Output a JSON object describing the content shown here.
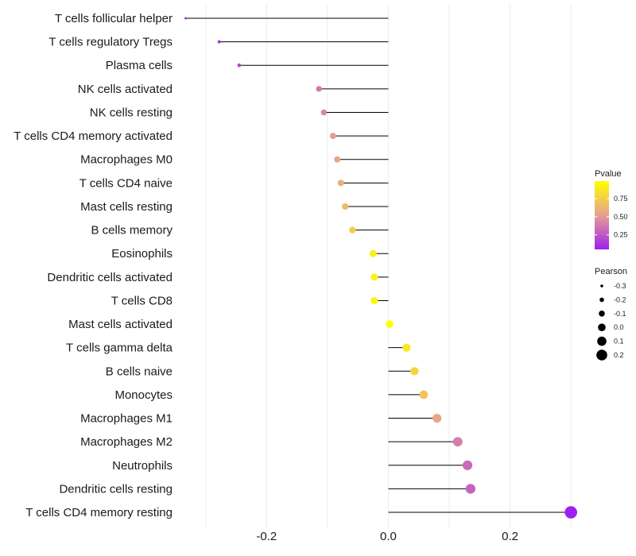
{
  "chart_data": {
    "type": "lollipop",
    "categories": [
      "T cells follicular helper",
      "T cells regulatory  Tregs",
      "Plasma cells",
      "NK cells activated",
      "NK cells resting",
      "T cells CD4 memory activated",
      "Macrophages M0",
      "T cells CD4 naive",
      "Mast cells resting",
      "B cells memory",
      "Eosinophils",
      "Dendritic cells activated",
      "T cells CD8",
      "Mast cells activated",
      "T cells gamma delta",
      "B cells naive",
      "Monocytes",
      "Macrophages M1",
      "Macrophages M2",
      "Neutrophils",
      "Dendritic cells resting",
      "T cells CD4 memory resting"
    ],
    "values": [
      -0.333,
      -0.278,
      -0.245,
      -0.114,
      -0.106,
      -0.091,
      -0.084,
      -0.078,
      -0.071,
      -0.059,
      -0.025,
      -0.023,
      -0.023,
      0.002,
      0.03,
      0.043,
      0.058,
      0.08,
      0.114,
      0.13,
      0.135,
      0.3
    ],
    "pvalues": [
      0.08,
      0.12,
      0.18,
      0.38,
      0.42,
      0.5,
      0.55,
      0.6,
      0.65,
      0.75,
      0.92,
      0.93,
      0.93,
      0.99,
      0.88,
      0.78,
      0.7,
      0.55,
      0.4,
      0.32,
      0.3,
      0.05
    ],
    "xlim": [
      -0.335,
      0.305
    ],
    "x_ticks": [
      -0.2,
      0.0,
      0.2
    ],
    "x_tick_labels": [
      "-0.2",
      "0.0",
      "0.2"
    ],
    "xlabel": "",
    "ylabel": "",
    "grid": true,
    "legend_color": {
      "title": "Pvalue",
      "ticks": [
        0.75,
        0.5,
        0.25
      ],
      "tick_labels": [
        "0.75",
        "0.50",
        "0.25"
      ],
      "range": [
        0.05,
        0.99
      ],
      "low_color": "#a020f0",
      "mid_color": "#e6a090",
      "high_color": "#ffff00"
    },
    "legend_size": {
      "title": "Pearson",
      "values": [
        -0.3,
        -0.2,
        -0.1,
        0.0,
        0.1,
        0.2
      ],
      "labels": [
        "-0.3",
        "-0.2",
        "-0.1",
        "0.0",
        "0.1",
        "0.2"
      ]
    },
    "legend_position": "right"
  }
}
